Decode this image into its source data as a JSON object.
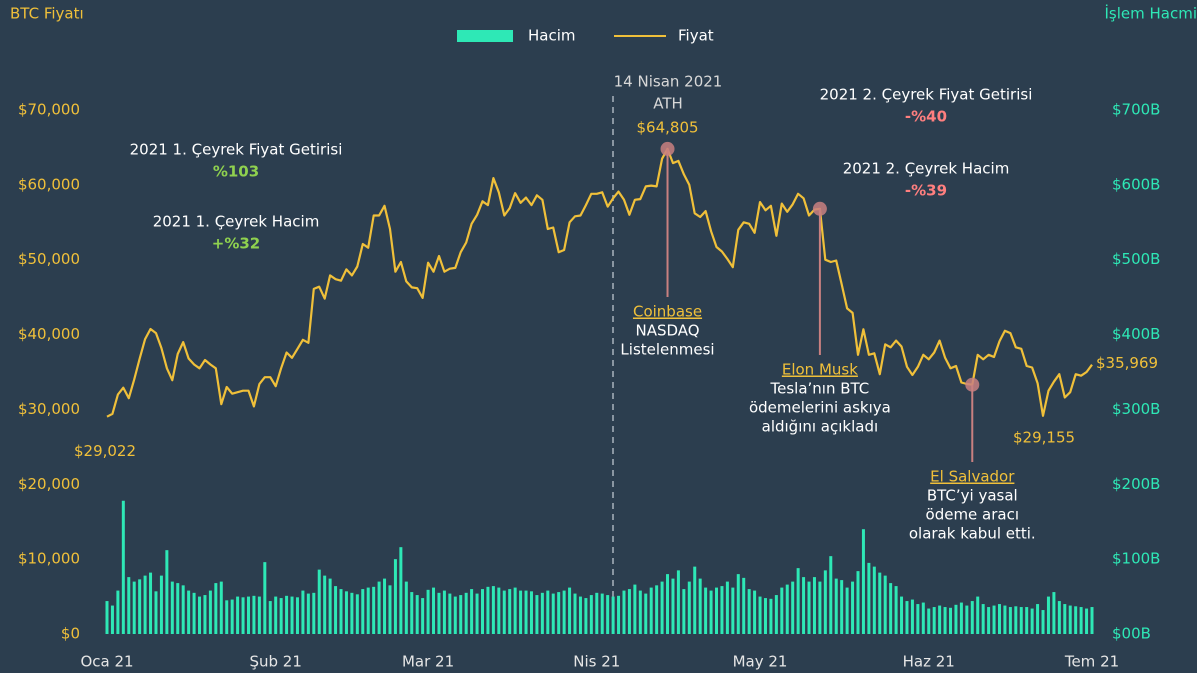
{
  "chart_data": {
    "type": "combo",
    "y_axis_label": "BTC Fiyatı",
    "y2_axis_label": "İşlem Hacmi",
    "categories": [
      "Oca 21",
      null,
      null,
      null,
      null,
      null,
      null,
      null,
      null,
      null,
      null,
      null,
      null,
      null,
      null,
      null,
      null,
      null,
      null,
      null,
      null,
      null,
      null,
      null,
      null,
      null,
      null,
      null,
      null,
      null,
      null,
      "Şub 21",
      null,
      null,
      null,
      null,
      null,
      null,
      null,
      null,
      null,
      null,
      null,
      null,
      null,
      null,
      null,
      null,
      null,
      null,
      null,
      null,
      null,
      null,
      null,
      null,
      null,
      null,
      null,
      "Mar 21",
      null,
      null,
      null,
      null,
      null,
      null,
      null,
      null,
      null,
      null,
      null,
      null,
      null,
      null,
      null,
      null,
      null,
      null,
      null,
      null,
      null,
      null,
      null,
      null,
      null,
      null,
      null,
      null,
      null,
      null,
      "Nis 21",
      null,
      null,
      null,
      null,
      null,
      null,
      null,
      null,
      null,
      null,
      null,
      null,
      null,
      null,
      null,
      null,
      null,
      null,
      null,
      null,
      null,
      null,
      null,
      null,
      null,
      null,
      null,
      null,
      null,
      "May 21",
      null,
      null,
      null,
      null,
      null,
      null,
      null,
      null,
      null,
      null,
      null,
      null,
      null,
      null,
      null,
      null,
      null,
      null,
      null,
      null,
      null,
      null,
      null,
      null,
      null,
      null,
      null,
      null,
      null,
      null,
      "Haz 21",
      null,
      null,
      null,
      null,
      null,
      null,
      null,
      null,
      null,
      null,
      null,
      null,
      null,
      null,
      null,
      null,
      null,
      null,
      null,
      null,
      null,
      null,
      null,
      null,
      null,
      null,
      null,
      null,
      null,
      "Tem 21"
    ],
    "series": [
      {
        "name": "Hacim",
        "type": "bar",
        "axis": "y2",
        "color": "#2ee8b6",
        "values": [
          44,
          38,
          58,
          178,
          76,
          70,
          73,
          78,
          82,
          57,
          78,
          112,
          70,
          68,
          65,
          58,
          55,
          50,
          52,
          58,
          68,
          70,
          45,
          46,
          50,
          49,
          50,
          51,
          50,
          96,
          44,
          50,
          48,
          51,
          50,
          49,
          58,
          54,
          55,
          86,
          78,
          74,
          64,
          60,
          57,
          55,
          53,
          60,
          62,
          63,
          70,
          74,
          65,
          100,
          116,
          70,
          56,
          52,
          48,
          59,
          62,
          55,
          58,
          54,
          50,
          52,
          55,
          60,
          54,
          60,
          63,
          64,
          62,
          58,
          60,
          62,
          58,
          58,
          57,
          52,
          55,
          58,
          54,
          56,
          58,
          62,
          54,
          50,
          48,
          52,
          55,
          54,
          52,
          50,
          51,
          58,
          60,
          66,
          58,
          54,
          62,
          65,
          70,
          80,
          74,
          85,
          60,
          70,
          90,
          74,
          62,
          58,
          62,
          64,
          70,
          62,
          80,
          75,
          60,
          58,
          50,
          48,
          47,
          52,
          62,
          66,
          70,
          88,
          76,
          70,
          76,
          70,
          85,
          104,
          74,
          72,
          62,
          70,
          84,
          140,
          95,
          90,
          82,
          78,
          68,
          64,
          50,
          44,
          46,
          40,
          42,
          34,
          36,
          38,
          36,
          35,
          39,
          42,
          38,
          44,
          50,
          40,
          36,
          38,
          40,
          38,
          36,
          37,
          36,
          36,
          34,
          40,
          32,
          50,
          56,
          44,
          40,
          38,
          37,
          36,
          34,
          36
        ]
      },
      {
        "name": "Fiyat",
        "type": "line",
        "color": "#f0c03a",
        "values": [
          29022,
          29400,
          32000,
          32900,
          31500,
          34000,
          36800,
          39400,
          40750,
          40200,
          38200,
          35500,
          33900,
          37400,
          39000,
          36800,
          36000,
          35500,
          36600,
          36000,
          35500,
          30700,
          33000,
          32100,
          32300,
          32500,
          32500,
          30400,
          33400,
          34300,
          34300,
          33100,
          35500,
          37600,
          36900,
          38100,
          39300,
          38900,
          46100,
          46400,
          44800,
          47900,
          47400,
          47200,
          48700,
          47900,
          49100,
          52100,
          51600,
          55900,
          55900,
          57200,
          54100,
          48400,
          49700,
          47100,
          46300,
          46200,
          44900,
          49600,
          48400,
          50500,
          48400,
          48800,
          48900,
          51000,
          52300,
          54800,
          56000,
          57800,
          57300,
          60900,
          59000,
          55900,
          56900,
          58900,
          57600,
          58300,
          57300,
          58600,
          58000,
          54100,
          54300,
          51000,
          51300,
          55000,
          55800,
          55900,
          57300,
          58800,
          58800,
          59000,
          57100,
          58200,
          59100,
          58000,
          56000,
          58000,
          58100,
          59800,
          59900,
          59800,
          63500,
          64805,
          62900,
          63200,
          61400,
          60000,
          56200,
          55700,
          56500,
          53800,
          51700,
          51100,
          50100,
          49000,
          54000,
          55000,
          54800,
          53600,
          57700,
          56600,
          57200,
          53200,
          57500,
          56400,
          57400,
          58800,
          58200,
          55900,
          56700,
          56800,
          50000,
          49700,
          49900,
          46700,
          43500,
          42900,
          37300,
          40700,
          37300,
          37500,
          34700,
          38700,
          38300,
          39200,
          38400,
          35700,
          34600,
          35700,
          37300,
          36700,
          37600,
          39200,
          36900,
          35500,
          35800,
          33600,
          33400,
          33300,
          37300,
          36700,
          37300,
          37000,
          39100,
          40500,
          40200,
          38300,
          38100,
          35800,
          35600,
          33500,
          29155,
          32500,
          33700,
          34700,
          31600,
          32300,
          34700,
          34500,
          35000,
          35969
        ],
        "value_labels": [
          "$29,022",
          null,
          null,
          null,
          null,
          null,
          null,
          null,
          null,
          null,
          null,
          null,
          null,
          null,
          null,
          null,
          null,
          null,
          null,
          null,
          null,
          null,
          null,
          null,
          null,
          null,
          null,
          null,
          null,
          null,
          null,
          null,
          null,
          null,
          null,
          null,
          null,
          null,
          null,
          null,
          null,
          null,
          null,
          null,
          null,
          null,
          null,
          null,
          null,
          null,
          null,
          null,
          null,
          null,
          null,
          null,
          null,
          null,
          null,
          null,
          null,
          null,
          null,
          null,
          null,
          null,
          null,
          null,
          null,
          null,
          null,
          null,
          null,
          null,
          null,
          null,
          null,
          null,
          null,
          null,
          null,
          null,
          null,
          null,
          null,
          null,
          null,
          null,
          null,
          null,
          null,
          null,
          null,
          null,
          null,
          null,
          null,
          null,
          null,
          null,
          null,
          null,
          null,
          "$64,805",
          null,
          null,
          null,
          null,
          null,
          null,
          null,
          null,
          null,
          null,
          null,
          null,
          null,
          null,
          null,
          null,
          null,
          null,
          null,
          null,
          null,
          null,
          null,
          null,
          null,
          null,
          null,
          null,
          null,
          null,
          null,
          null,
          null,
          null,
          null,
          null,
          null,
          null,
          null,
          null,
          null,
          null,
          null,
          null,
          null,
          null,
          null,
          null,
          null,
          null,
          null,
          null,
          null,
          null,
          null,
          null,
          null,
          null,
          null,
          null,
          null,
          null,
          null,
          null,
          null,
          null,
          null,
          null,
          "$29,155",
          null,
          null,
          null,
          null,
          null,
          null,
          null,
          null,
          "$35,969"
        ]
      }
    ],
    "ylim": [
      0,
      70000
    ],
    "yticks": [
      {
        "value": 0,
        "label": "$0"
      },
      {
        "value": 10000,
        "label": "$10,000"
      },
      {
        "value": 20000,
        "label": "$20,000"
      },
      {
        "value": 30000,
        "label": "$30,000"
      },
      {
        "value": 40000,
        "label": "$40,000"
      },
      {
        "value": 50000,
        "label": "$50,000"
      },
      {
        "value": 60000,
        "label": "$60,000"
      },
      {
        "value": 70000,
        "label": "$70,000"
      }
    ],
    "y2lim": [
      0,
      700
    ],
    "y2ticks": [
      {
        "value": 0,
        "label": "$00B"
      },
      {
        "value": 100,
        "label": "$100B"
      },
      {
        "value": 200,
        "label": "$200B"
      },
      {
        "value": 300,
        "label": "$300B"
      },
      {
        "value": 400,
        "label": "$400B"
      },
      {
        "value": 500,
        "label": "$500B"
      },
      {
        "value": 600,
        "label": "$600B"
      },
      {
        "value": 700,
        "label": "$700B"
      }
    ],
    "ath_label": [
      "14 Nisan 2021",
      "ATH"
    ],
    "stats": [
      {
        "label": "2021 1. Çeyrek Fiyat Getirisi",
        "value": "%103",
        "color": "#8fd14f"
      },
      {
        "label": "2021 1. Çeyrek Hacim",
        "value": "+%32",
        "color": "#8fd14f"
      },
      {
        "label": "2021 2. Çeyrek Fiyat Getirisi",
        "value": "-%40",
        "color": "#ff7f7f"
      },
      {
        "label": "2021 2. Çeyrek Hacim",
        "value": "-%39",
        "color": "#ff7f7f"
      }
    ],
    "events": [
      {
        "title": "Coinbase",
        "lines": [
          "NASDAQ",
          "Listelenmesi"
        ]
      },
      {
        "title": "Elon Musk",
        "lines": [
          "Tesla’nın BTC",
          "ödemelerini askıya",
          "aldığını açıkladı"
        ]
      },
      {
        "title": "El Salvador",
        "lines": [
          "BTC’yi yasal",
          "ödeme aracı",
          "olarak kabul etti."
        ]
      }
    ]
  }
}
